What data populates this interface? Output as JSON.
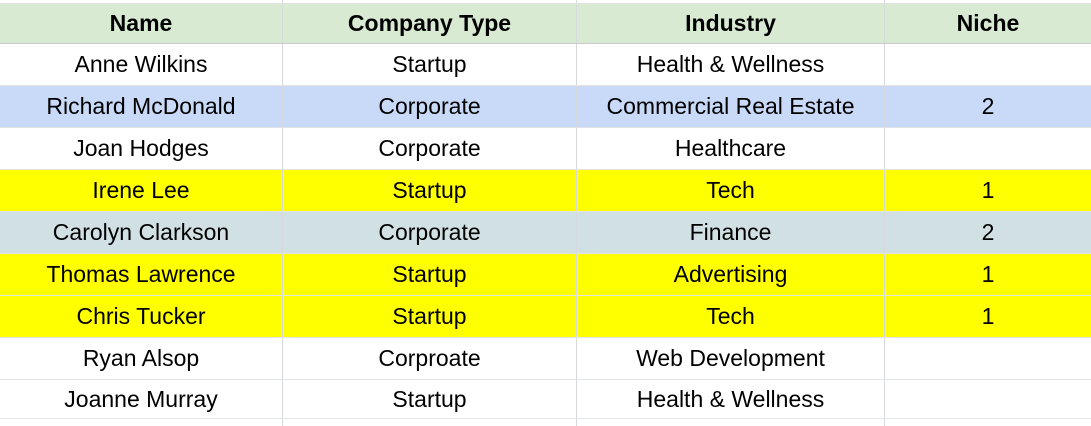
{
  "table": {
    "columns": [
      {
        "key": "name",
        "label": "Name"
      },
      {
        "key": "company_type",
        "label": "Company Type"
      },
      {
        "key": "industry",
        "label": "Industry"
      },
      {
        "key": "niche",
        "label": "Niche"
      }
    ],
    "rows": [
      {
        "name": "Anne Wilkins",
        "company_type": "Startup",
        "industry": "Health & Wellness",
        "niche": "",
        "highlight": "white"
      },
      {
        "name": "Richard McDonald",
        "company_type": "Corporate",
        "industry": "Commercial Real Estate",
        "niche": "2",
        "highlight": "blue"
      },
      {
        "name": "Joan Hodges",
        "company_type": "Corporate",
        "industry": "Healthcare",
        "niche": "",
        "highlight": "white"
      },
      {
        "name": "Irene Lee",
        "company_type": "Startup",
        "industry": "Tech",
        "niche": "1",
        "highlight": "yellow"
      },
      {
        "name": "Carolyn Clarkson",
        "company_type": "Corporate",
        "industry": "Finance",
        "niche": "2",
        "highlight": "cyan"
      },
      {
        "name": "Thomas Lawrence",
        "company_type": "Startup",
        "industry": "Advertising",
        "niche": "1",
        "highlight": "yellow"
      },
      {
        "name": "Chris Tucker",
        "company_type": "Startup",
        "industry": "Tech",
        "niche": "1",
        "highlight": "yellow"
      },
      {
        "name": "Ryan Alsop",
        "company_type": "Corproate",
        "industry": "Web Development",
        "niche": "",
        "highlight": "white"
      },
      {
        "name": "Joanne Murray",
        "company_type": "Startup",
        "industry": "Health & Wellness",
        "niche": "",
        "highlight": "white"
      }
    ],
    "colors": {
      "header_bg": "#d9ead3",
      "row_white": "#ffffff",
      "row_blue": "#c9daf8",
      "row_yellow": "#ffff00",
      "row_cyan": "#d0e0e3",
      "gridline": "#d7dadd",
      "text": "#000000"
    }
  }
}
